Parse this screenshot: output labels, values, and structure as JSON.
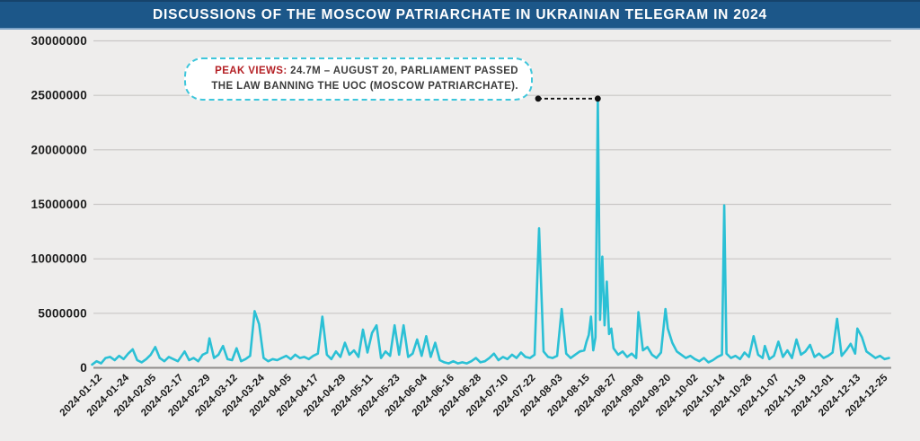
{
  "header": {
    "title": "DISCUSSIONS OF THE MOSCOW PATRIARCHATE IN UKRAINIAN TELEGRAM IN 2024"
  },
  "annotation": {
    "label_prefix": "PEAK VIEWS:",
    "text": " 24.7M – AUGUST 20, PARLIAMENT PASSED THE LAW BANNING THE UOC (MOSCOW PATRIARCHATE).",
    "peak_date": "2024-08-20",
    "peak_value": 24700000
  },
  "colors": {
    "title_bar": "#1C5789",
    "line": "#2BC0D5",
    "gridline": "#C9C7C5",
    "axis_line": "#8F8D8B",
    "tick_label": "#1B1B1B",
    "annotation_accent": "#B42025",
    "annotation_border": "#3EC6DB",
    "connector": "#111111",
    "background": "#EEEDEC"
  },
  "chart_data": {
    "type": "line",
    "title": "Discussions of the Moscow Patriarchate in Ukrainian Telegram in 2024",
    "xlabel": "",
    "ylabel": "",
    "ylim": [
      0,
      30000000
    ],
    "grid": true,
    "legend": "none",
    "y_ticks": [
      0,
      5000000,
      10000000,
      15000000,
      20000000,
      25000000,
      30000000
    ],
    "x_tick_labels": [
      "2024-01-12",
      "2024-01-24",
      "2024-02-05",
      "2024-02-17",
      "2024-02-29",
      "2024-03-12",
      "2024-03-24",
      "2024-04-05",
      "2024-04-17",
      "2024-04-29",
      "2024-05-11",
      "2024-05-23",
      "2024-06-04",
      "2024-06-16",
      "2024-06-28",
      "2024-07-10",
      "2024-07-22",
      "2024-08-03",
      "2024-08-15",
      "2024-08-27",
      "2024-09-08",
      "2024-09-20",
      "2024-10-02",
      "2024-10-14",
      "2024-10-26",
      "2024-11-07",
      "2024-11-19",
      "2024-12-01",
      "2024-12-13",
      "2024-12-25"
    ],
    "series": [
      {
        "name": "views",
        "color": "#2BC0D5",
        "points": [
          [
            "2024-01-09",
            300000
          ],
          [
            "2024-01-11",
            600000
          ],
          [
            "2024-01-13",
            400000
          ],
          [
            "2024-01-15",
            900000
          ],
          [
            "2024-01-17",
            1000000
          ],
          [
            "2024-01-19",
            700000
          ],
          [
            "2024-01-21",
            1100000
          ],
          [
            "2024-01-23",
            800000
          ],
          [
            "2024-01-25",
            1300000
          ],
          [
            "2024-01-27",
            1700000
          ],
          [
            "2024-01-29",
            700000
          ],
          [
            "2024-01-31",
            500000
          ],
          [
            "2024-02-02",
            800000
          ],
          [
            "2024-02-04",
            1200000
          ],
          [
            "2024-02-06",
            1900000
          ],
          [
            "2024-02-08",
            900000
          ],
          [
            "2024-02-10",
            600000
          ],
          [
            "2024-02-12",
            1000000
          ],
          [
            "2024-02-14",
            800000
          ],
          [
            "2024-02-16",
            600000
          ],
          [
            "2024-02-19",
            1500000
          ],
          [
            "2024-02-21",
            700000
          ],
          [
            "2024-02-23",
            900000
          ],
          [
            "2024-02-25",
            600000
          ],
          [
            "2024-02-27",
            1200000
          ],
          [
            "2024-02-29",
            1400000
          ],
          [
            "2024-03-01",
            2700000
          ],
          [
            "2024-03-03",
            900000
          ],
          [
            "2024-03-05",
            1200000
          ],
          [
            "2024-03-07",
            2000000
          ],
          [
            "2024-03-09",
            800000
          ],
          [
            "2024-03-11",
            700000
          ],
          [
            "2024-03-13",
            1800000
          ],
          [
            "2024-03-15",
            600000
          ],
          [
            "2024-03-17",
            800000
          ],
          [
            "2024-03-19",
            1100000
          ],
          [
            "2024-03-21",
            5200000
          ],
          [
            "2024-03-23",
            4000000
          ],
          [
            "2024-03-25",
            900000
          ],
          [
            "2024-03-27",
            600000
          ],
          [
            "2024-03-29",
            800000
          ],
          [
            "2024-03-31",
            700000
          ],
          [
            "2024-04-02",
            900000
          ],
          [
            "2024-04-04",
            1100000
          ],
          [
            "2024-04-06",
            800000
          ],
          [
            "2024-04-08",
            1200000
          ],
          [
            "2024-04-10",
            900000
          ],
          [
            "2024-04-12",
            1000000
          ],
          [
            "2024-04-14",
            800000
          ],
          [
            "2024-04-16",
            1100000
          ],
          [
            "2024-04-18",
            1300000
          ],
          [
            "2024-04-20",
            4700000
          ],
          [
            "2024-04-22",
            1200000
          ],
          [
            "2024-04-24",
            800000
          ],
          [
            "2024-04-26",
            1500000
          ],
          [
            "2024-04-28",
            1000000
          ],
          [
            "2024-04-30",
            2300000
          ],
          [
            "2024-05-02",
            1200000
          ],
          [
            "2024-05-04",
            1600000
          ],
          [
            "2024-05-06",
            1000000
          ],
          [
            "2024-05-08",
            3500000
          ],
          [
            "2024-05-10",
            1400000
          ],
          [
            "2024-05-12",
            3200000
          ],
          [
            "2024-05-14",
            3900000
          ],
          [
            "2024-05-16",
            900000
          ],
          [
            "2024-05-18",
            1500000
          ],
          [
            "2024-05-20",
            1100000
          ],
          [
            "2024-05-22",
            3900000
          ],
          [
            "2024-05-24",
            1200000
          ],
          [
            "2024-05-26",
            3900000
          ],
          [
            "2024-05-28",
            1000000
          ],
          [
            "2024-05-30",
            1300000
          ],
          [
            "2024-06-01",
            2600000
          ],
          [
            "2024-06-03",
            1100000
          ],
          [
            "2024-06-05",
            2900000
          ],
          [
            "2024-06-07",
            1000000
          ],
          [
            "2024-06-09",
            2300000
          ],
          [
            "2024-06-11",
            700000
          ],
          [
            "2024-06-13",
            500000
          ],
          [
            "2024-06-15",
            400000
          ],
          [
            "2024-06-17",
            600000
          ],
          [
            "2024-06-19",
            400000
          ],
          [
            "2024-06-21",
            500000
          ],
          [
            "2024-06-23",
            400000
          ],
          [
            "2024-06-25",
            600000
          ],
          [
            "2024-06-27",
            900000
          ],
          [
            "2024-06-29",
            500000
          ],
          [
            "2024-07-01",
            600000
          ],
          [
            "2024-07-03",
            900000
          ],
          [
            "2024-07-05",
            1300000
          ],
          [
            "2024-07-07",
            700000
          ],
          [
            "2024-07-09",
            1000000
          ],
          [
            "2024-07-11",
            800000
          ],
          [
            "2024-07-13",
            1200000
          ],
          [
            "2024-07-15",
            900000
          ],
          [
            "2024-07-17",
            1400000
          ],
          [
            "2024-07-19",
            1000000
          ],
          [
            "2024-07-21",
            900000
          ],
          [
            "2024-07-23",
            1200000
          ],
          [
            "2024-07-25",
            12800000
          ],
          [
            "2024-07-27",
            1500000
          ],
          [
            "2024-07-29",
            1000000
          ],
          [
            "2024-07-31",
            900000
          ],
          [
            "2024-08-02",
            1100000
          ],
          [
            "2024-08-04",
            5400000
          ],
          [
            "2024-08-06",
            1300000
          ],
          [
            "2024-08-08",
            900000
          ],
          [
            "2024-08-10",
            1200000
          ],
          [
            "2024-08-12",
            1500000
          ],
          [
            "2024-08-14",
            1600000
          ],
          [
            "2024-08-15",
            2400000
          ],
          [
            "2024-08-16",
            3000000
          ],
          [
            "2024-08-17",
            4700000
          ],
          [
            "2024-08-18",
            1600000
          ],
          [
            "2024-08-19",
            2800000
          ],
          [
            "2024-08-20",
            24700000
          ],
          [
            "2024-08-21",
            4400000
          ],
          [
            "2024-08-22",
            10200000
          ],
          [
            "2024-08-23",
            3900000
          ],
          [
            "2024-08-24",
            7900000
          ],
          [
            "2024-08-25",
            3100000
          ],
          [
            "2024-08-26",
            3600000
          ],
          [
            "2024-08-27",
            1800000
          ],
          [
            "2024-08-29",
            1200000
          ],
          [
            "2024-08-31",
            1500000
          ],
          [
            "2024-09-02",
            1000000
          ],
          [
            "2024-09-04",
            1300000
          ],
          [
            "2024-09-06",
            900000
          ],
          [
            "2024-09-07",
            5100000
          ],
          [
            "2024-09-09",
            1600000
          ],
          [
            "2024-09-11",
            1900000
          ],
          [
            "2024-09-13",
            1200000
          ],
          [
            "2024-09-15",
            900000
          ],
          [
            "2024-09-17",
            1400000
          ],
          [
            "2024-09-19",
            5400000
          ],
          [
            "2024-09-20",
            3600000
          ],
          [
            "2024-09-22",
            2300000
          ],
          [
            "2024-09-24",
            1500000
          ],
          [
            "2024-09-26",
            1200000
          ],
          [
            "2024-09-28",
            900000
          ],
          [
            "2024-09-30",
            1100000
          ],
          [
            "2024-10-02",
            800000
          ],
          [
            "2024-10-04",
            600000
          ],
          [
            "2024-10-06",
            900000
          ],
          [
            "2024-10-08",
            500000
          ],
          [
            "2024-10-10",
            700000
          ],
          [
            "2024-10-12",
            1000000
          ],
          [
            "2024-10-14",
            1200000
          ],
          [
            "2024-10-15",
            14900000
          ],
          [
            "2024-10-16",
            1300000
          ],
          [
            "2024-10-18",
            900000
          ],
          [
            "2024-10-20",
            1100000
          ],
          [
            "2024-10-22",
            800000
          ],
          [
            "2024-10-24",
            1400000
          ],
          [
            "2024-10-26",
            1000000
          ],
          [
            "2024-10-28",
            2900000
          ],
          [
            "2024-10-30",
            1200000
          ],
          [
            "2024-11-01",
            900000
          ],
          [
            "2024-11-02",
            2000000
          ],
          [
            "2024-11-04",
            800000
          ],
          [
            "2024-11-06",
            1100000
          ],
          [
            "2024-11-08",
            2400000
          ],
          [
            "2024-11-10",
            1000000
          ],
          [
            "2024-11-12",
            1600000
          ],
          [
            "2024-11-14",
            900000
          ],
          [
            "2024-11-16",
            2600000
          ],
          [
            "2024-11-18",
            1200000
          ],
          [
            "2024-11-20",
            1500000
          ],
          [
            "2024-11-22",
            2100000
          ],
          [
            "2024-11-24",
            1000000
          ],
          [
            "2024-11-26",
            1300000
          ],
          [
            "2024-11-28",
            900000
          ],
          [
            "2024-11-30",
            1100000
          ],
          [
            "2024-12-02",
            1400000
          ],
          [
            "2024-12-04",
            4500000
          ],
          [
            "2024-12-06",
            1100000
          ],
          [
            "2024-12-08",
            1600000
          ],
          [
            "2024-12-10",
            2200000
          ],
          [
            "2024-12-12",
            1300000
          ],
          [
            "2024-12-13",
            3600000
          ],
          [
            "2024-12-15",
            2800000
          ],
          [
            "2024-12-17",
            1500000
          ],
          [
            "2024-12-19",
            1200000
          ],
          [
            "2024-12-21",
            900000
          ],
          [
            "2024-12-23",
            1100000
          ],
          [
            "2024-12-25",
            800000
          ],
          [
            "2024-12-27",
            900000
          ]
        ]
      }
    ]
  }
}
